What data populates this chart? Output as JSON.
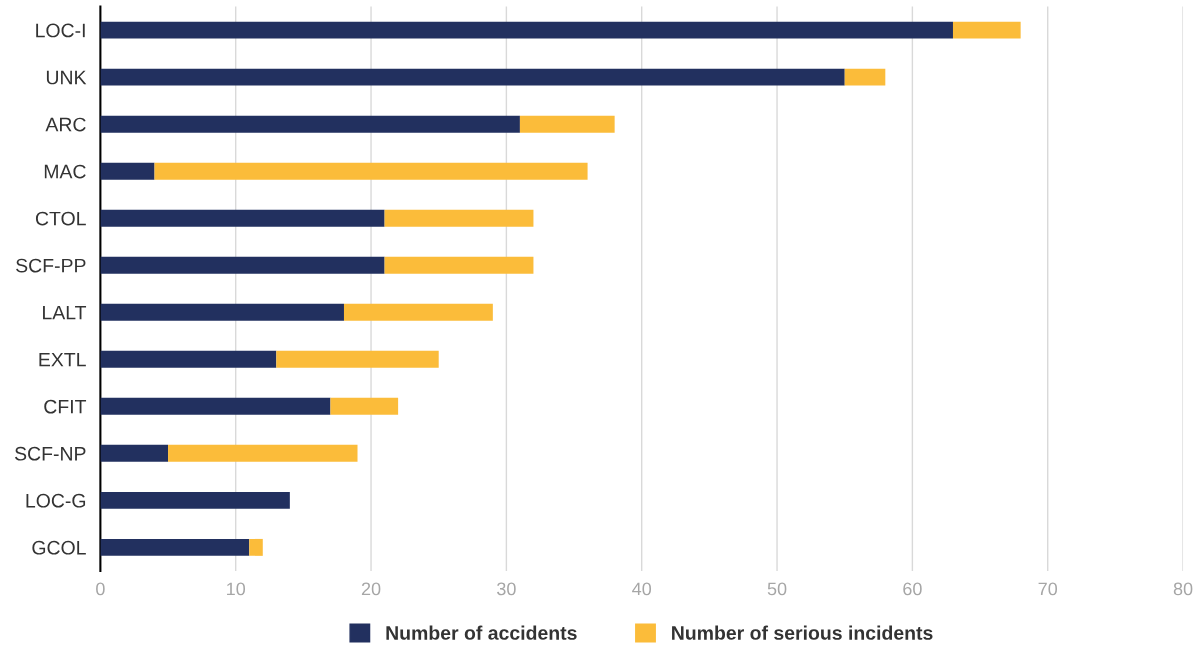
{
  "chart_data": {
    "type": "bar",
    "orientation": "horizontal",
    "stacked": true,
    "categories": [
      "LOC-I",
      "UNK",
      "ARC",
      "MAC",
      "CTOL",
      "SCF-PP",
      "LALT",
      "EXTL",
      "CFIT",
      "SCF-NP",
      "LOC-G",
      "GCOL"
    ],
    "series": [
      {
        "name": "Number of accidents",
        "color": "#22305f",
        "values": [
          63,
          55,
          31,
          4,
          21,
          21,
          18,
          13,
          17,
          5,
          14,
          11
        ]
      },
      {
        "name": "Number of serious incidents",
        "color": "#fbbc3a",
        "values": [
          5,
          3,
          7,
          32,
          11,
          11,
          11,
          12,
          5,
          14,
          0,
          1
        ]
      }
    ],
    "xlim": [
      0,
      80
    ],
    "xticks": [
      0,
      10,
      20,
      30,
      40,
      50,
      60,
      70,
      80
    ],
    "grid": "x",
    "legend": "bottom"
  }
}
